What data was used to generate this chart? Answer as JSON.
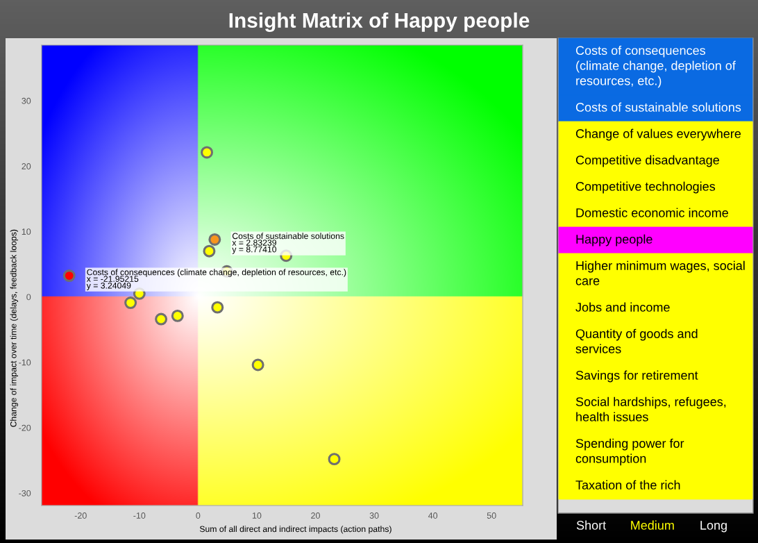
{
  "chart_data": [
    {
      "type": "scatter",
      "title": "Insight Matrix of Happy people",
      "xlabel": "Sum of all direct and indirect impacts (action paths)",
      "ylabel": "Change of impact over time (delays, feedback loops)",
      "x": [
        -21.95215,
        2.83239,
        1.5,
        1.9,
        4.9,
        15.0,
        3.3,
        -3.5,
        -6.3,
        -11.5,
        -10.0,
        10.2,
        23.2
      ],
      "values": [
        3.24049,
        8.7741,
        22.1,
        7.0,
        3.9,
        6.3,
        -1.6,
        -2.9,
        -3.4,
        -0.9,
        0.5,
        -10.4,
        -24.8
      ],
      "colors": [
        "#ff0000",
        "#f7941d",
        "#ffff00",
        "#ffff00",
        "#ffff00",
        "#ffff00",
        "#ffff00",
        "#ffff00",
        "#ffff00",
        "#ffff00",
        "#ffff00",
        "#ffff00",
        "#ffff00"
      ],
      "marker": "circle",
      "xlim": [
        -26.65,
        55.3
      ],
      "ylim": [
        -31.9,
        38.5
      ],
      "xticks": [
        -20,
        -10,
        0,
        10,
        20,
        30,
        40,
        50
      ],
      "yticks": [
        -30,
        -20,
        -10,
        0,
        10,
        20,
        30
      ],
      "annotations": [
        {
          "text": "Costs of sustainable solutions\nx = 2.83239\ny = 8.77410",
          "x": 2.83239,
          "y": 8.7741
        },
        {
          "text": "Costs of consequences (climate change, depletion of resources, etc.)\nx = -21.95215\ny = 3.24049",
          "x": -21.95215,
          "y": 3.24049
        }
      ]
    },
    {
      "type": "other",
      "categories": [
        "Costs of consequences (climate change, depletion of resources, etc.)",
        "Costs of sustainable solutions",
        "Change of values everywhere",
        "Competitive disadvantage",
        "Competitive technologies",
        "Domestic economic income",
        "Happy people",
        "Higher minimum wages, social care",
        "Jobs and income",
        "Quantity of goods and services",
        "Savings for retirement",
        "Social hardships, refugees, health issues",
        "Spending power for consumption",
        "Taxation of the rich"
      ],
      "colors": [
        "#0a6ae2",
        "#0a6ae2",
        "#ffff00",
        "#ffff00",
        "#ffff00",
        "#ffff00",
        "#ff00ff",
        "#ffff00",
        "#ffff00",
        "#ffff00",
        "#ffff00",
        "#ffff00",
        "#ffff00",
        "#ffff00"
      ]
    },
    {
      "type": "other",
      "categories": [
        "Short",
        "Medium",
        "Long"
      ],
      "colors": [
        "#ffffff",
        "#ffff00",
        "#ffffff"
      ]
    }
  ]
}
